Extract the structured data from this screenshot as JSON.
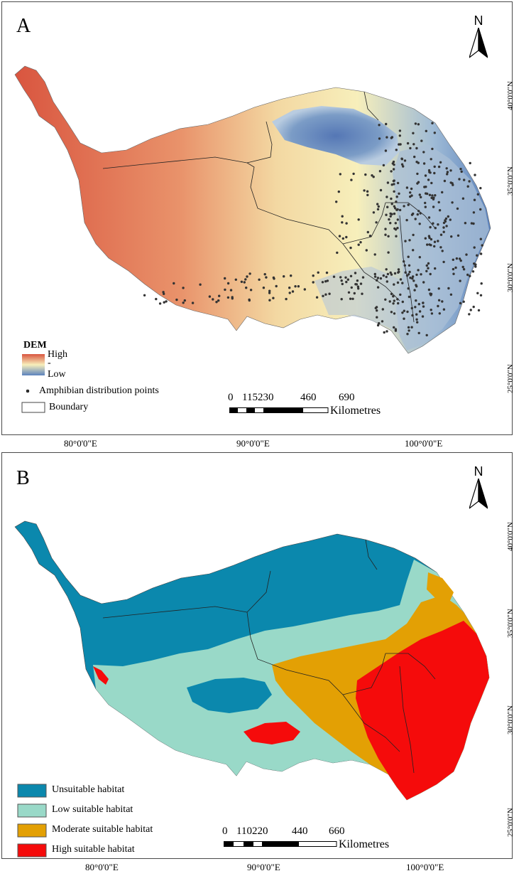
{
  "panel_a": {
    "label": "A",
    "north": "N",
    "legend": {
      "title": "DEM",
      "high": "High",
      "mid": "-",
      "low": "Low",
      "points": "Amphibian distribution points",
      "boundary": "Boundary"
    },
    "scale": {
      "ticks": [
        "0",
        "115230",
        "460",
        "690"
      ],
      "unit": "Kilometres"
    },
    "lat_labels": [
      "40°0'0\"N",
      "35°0'0\"N",
      "30°0'0\"N",
      "25°0'0\"N"
    ],
    "lon_labels": [
      "80°0'0\"E",
      "90°0'0\"E",
      "100°0'0\"E"
    ],
    "colors": {
      "high": "#d9553f",
      "mid": "#f7f0bd",
      "low": "#5b82bd",
      "points": "#333333"
    }
  },
  "panel_b": {
    "label": "B",
    "north": "N",
    "legend": [
      {
        "label": "Unsuitable habitat",
        "color": "#0b88ad"
      },
      {
        "label": "Low suitable habitat",
        "color": "#99d9c8"
      },
      {
        "label": "Moderate suitable habitat",
        "color": "#e3a004"
      },
      {
        "label": "High suitable habitat",
        "color": "#f50b0b"
      }
    ],
    "scale": {
      "ticks": [
        "0",
        "110220",
        "440",
        "660"
      ],
      "unit": "Kilometres"
    },
    "lat_labels": [
      "40°0'0\"N",
      "35°0'0\"N",
      "30°0'0\"N",
      "25°0'0\"N"
    ],
    "lon_labels": [
      "80°0'0\"E",
      "90°0'0\"E",
      "100°0'0\"E"
    ]
  }
}
